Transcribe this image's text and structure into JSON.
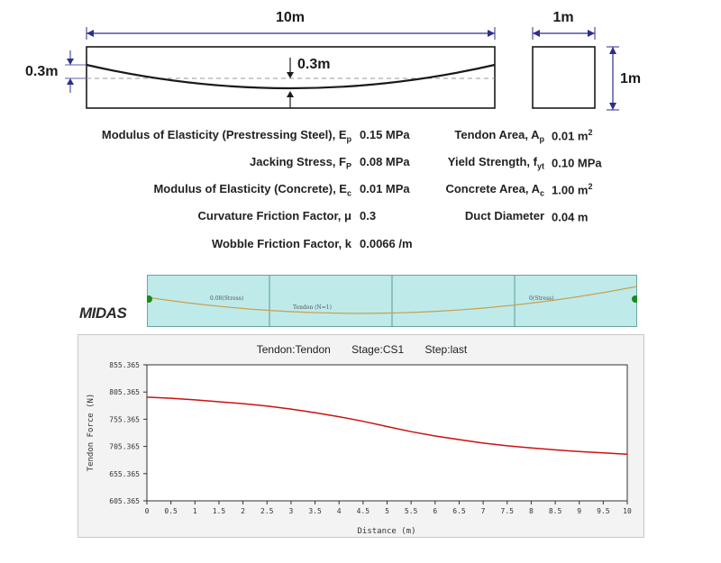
{
  "beam": {
    "length_label": "10m",
    "sag_label": "0.3m",
    "offset_label": "0.3m"
  },
  "section": {
    "width_label": "1m",
    "height_label": "1m"
  },
  "properties_left": [
    {
      "name": "Modulus of Elasticity (Prestressing Steel), E",
      "sub": "p",
      "value": "0.15 MPa"
    },
    {
      "name": "Jacking Stress, F",
      "sub": "P",
      "value": "0.08 MPa"
    },
    {
      "name": "Modulus of Elasticity (Concrete), E",
      "sub": "c",
      "value": "0.01 MPa"
    },
    {
      "name": "Curvature Friction Factor, μ",
      "sub": "",
      "value": "0.3"
    },
    {
      "name": "Wobble Friction Factor, k",
      "sub": "",
      "value": "0.0066 /m"
    }
  ],
  "properties_right": [
    {
      "name": "Tendon Area, A",
      "sub": "p",
      "value": "0.01 m",
      "sup": "2"
    },
    {
      "name": "Yield Strength, f",
      "sub": "yt",
      "value": "0.10 MPa",
      "sup": ""
    },
    {
      "name": "Concrete Area, A",
      "sub": "c",
      "value": "1.00 m",
      "sup": "2"
    },
    {
      "name": "Duct Diameter",
      "sub": "",
      "value": "0.04 m",
      "sup": ""
    }
  ],
  "model": {
    "logo": "MIDAS",
    "label_left": "0.08(Stress)",
    "label_mid": "Tendon (N=1)",
    "label_right": "0(Stress)"
  },
  "chart_data": {
    "type": "line",
    "title_tendon": "Tendon:Tendon",
    "title_stage": "Stage:CS1",
    "title_step": "Step:last",
    "xlabel": "Distance (m)",
    "ylabel": "Tendon Force (N)",
    "xlim": [
      0,
      10
    ],
    "ylim": [
      605.365,
      855.365
    ],
    "x_ticks": [
      "0",
      "0.5",
      "1",
      "1.5",
      "2",
      "2.5",
      "3",
      "3.5",
      "4",
      "4.5",
      "5",
      "5.5",
      "6",
      "6.5",
      "7",
      "7.5",
      "8",
      "8.5",
      "9",
      "9.5",
      "10"
    ],
    "y_ticks": [
      "855.365",
      "805.365",
      "755.365",
      "705.365",
      "655.365",
      "605.365"
    ],
    "series": [
      {
        "color": "#cc1111",
        "x": [
          0,
          0.5,
          1,
          1.5,
          2,
          2.5,
          3,
          3.5,
          4,
          4.5,
          5,
          5.5,
          6,
          6.5,
          7,
          7.5,
          8,
          8.5,
          9,
          9.5,
          10
        ],
        "y": [
          796.0,
          794.0,
          791.0,
          787.5,
          784.0,
          779.5,
          774.0,
          767.5,
          760.0,
          751.5,
          742.0,
          732.5,
          724.5,
          718.0,
          711.5,
          706.5,
          702.5,
          699.0,
          696.0,
          693.5,
          691.0
        ]
      }
    ],
    "grid": false
  }
}
